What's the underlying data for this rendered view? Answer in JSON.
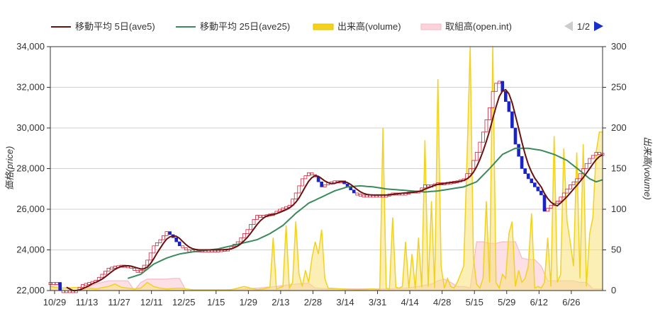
{
  "chart_data": {
    "type": "candlestick+line+area",
    "legend": [
      {
        "name": "移動平均 5日(ave5)",
        "color": "#6b0f0f",
        "kind": "line"
      },
      {
        "name": "移動平均 25日(ave25)",
        "color": "#3a8a5c",
        "kind": "line"
      },
      {
        "name": "出来高(volume)",
        "color": "#f2d21c",
        "kind": "area"
      },
      {
        "name": "取組高(open.int)",
        "color": "#f7b9c6",
        "kind": "area"
      }
    ],
    "pager": {
      "label": "1/2"
    },
    "y_left": {
      "label": "価格(price)",
      "min": 22000,
      "max": 34000,
      "ticks": [
        22000,
        24000,
        26000,
        28000,
        30000,
        32000,
        34000
      ],
      "tick_labels": [
        "22,000",
        "24,000",
        "26,000",
        "28,000",
        "30,000",
        "32,000",
        "34,000"
      ]
    },
    "y_right": {
      "label": "出来高(volume)",
      "min": 0,
      "max": 300,
      "ticks": [
        0,
        50,
        100,
        150,
        200,
        250,
        300
      ],
      "tick_labels": [
        "0",
        "50",
        "100",
        "150",
        "200",
        "250",
        "300"
      ]
    },
    "x_tick_labels": [
      "10/29",
      "11/13",
      "11/27",
      "12/11",
      "12/25",
      "1/15",
      "1/29",
      "2/13",
      "2/28",
      "3/14",
      "3/31",
      "4/14",
      "4/28",
      "5/15",
      "5/29",
      "6/12",
      "6/26"
    ],
    "x_tick_index": [
      0,
      10,
      20,
      30,
      40,
      50,
      60,
      70,
      80,
      90,
      100,
      110,
      120,
      130,
      140,
      150,
      160
    ],
    "n_points": 172,
    "price_anchors": [
      [
        0,
        22400
      ],
      [
        2,
        22400
      ],
      [
        3,
        22000
      ],
      [
        4,
        22000
      ],
      [
        8,
        22000
      ],
      [
        10,
        22300
      ],
      [
        12,
        22400
      ],
      [
        14,
        22500
      ],
      [
        16,
        22800
      ],
      [
        18,
        23100
      ],
      [
        20,
        23200
      ],
      [
        22,
        23250
      ],
      [
        24,
        23200
      ],
      [
        26,
        23000
      ],
      [
        28,
        23000
      ],
      [
        30,
        23500
      ],
      [
        32,
        24200
      ],
      [
        34,
        24500
      ],
      [
        36,
        24900
      ],
      [
        38,
        24600
      ],
      [
        40,
        24200
      ],
      [
        42,
        24000
      ],
      [
        44,
        24000
      ],
      [
        48,
        24000
      ],
      [
        52,
        24000
      ],
      [
        55,
        24050
      ],
      [
        58,
        24400
      ],
      [
        61,
        25000
      ],
      [
        63,
        25500
      ],
      [
        64,
        25700
      ],
      [
        66,
        25700
      ],
      [
        69,
        25800
      ],
      [
        71,
        26000
      ],
      [
        74,
        26200
      ],
      [
        76,
        26800
      ],
      [
        78,
        27500
      ],
      [
        80,
        27800
      ],
      [
        82,
        27600
      ],
      [
        84,
        27100
      ],
      [
        86,
        27300
      ],
      [
        88,
        27400
      ],
      [
        90,
        27400
      ],
      [
        92,
        27100
      ],
      [
        94,
        26800
      ],
      [
        96,
        26700
      ],
      [
        100,
        26700
      ],
      [
        104,
        26700
      ],
      [
        106,
        26800
      ],
      [
        110,
        26800
      ],
      [
        112,
        26900
      ],
      [
        114,
        26900
      ],
      [
        116,
        27200
      ],
      [
        118,
        27200
      ],
      [
        120,
        27300
      ],
      [
        122,
        27300
      ],
      [
        124,
        27350
      ],
      [
        126,
        27400
      ],
      [
        128,
        27500
      ],
      [
        130,
        28000
      ],
      [
        132,
        28800
      ],
      [
        134,
        29800
      ],
      [
        136,
        31000
      ],
      [
        137,
        31800
      ],
      [
        138,
        32200
      ],
      [
        139,
        32300
      ],
      [
        140,
        31800
      ],
      [
        142,
        30800
      ],
      [
        144,
        29200
      ],
      [
        146,
        28000
      ],
      [
        148,
        27500
      ],
      [
        150,
        27100
      ],
      [
        152,
        26700
      ],
      [
        153,
        25900
      ],
      [
        155,
        26200
      ],
      [
        157,
        26400
      ],
      [
        159,
        26800
      ],
      [
        161,
        27200
      ],
      [
        163,
        27500
      ],
      [
        165,
        28000
      ],
      [
        167,
        28500
      ],
      [
        169,
        28800
      ],
      [
        171,
        28700
      ]
    ],
    "ave25_anchors": [
      [
        24,
        22600
      ],
      [
        28,
        22800
      ],
      [
        32,
        23300
      ],
      [
        36,
        23600
      ],
      [
        40,
        23800
      ],
      [
        44,
        23900
      ],
      [
        48,
        23980
      ],
      [
        52,
        24050
      ],
      [
        56,
        24200
      ],
      [
        60,
        24350
      ],
      [
        64,
        24500
      ],
      [
        68,
        24800
      ],
      [
        72,
        25200
      ],
      [
        76,
        25800
      ],
      [
        80,
        26300
      ],
      [
        84,
        26600
      ],
      [
        88,
        26900
      ],
      [
        92,
        27100
      ],
      [
        96,
        27150
      ],
      [
        100,
        27100
      ],
      [
        104,
        27000
      ],
      [
        108,
        26950
      ],
      [
        112,
        26900
      ],
      [
        116,
        26850
      ],
      [
        120,
        26900
      ],
      [
        124,
        27000
      ],
      [
        128,
        27100
      ],
      [
        132,
        27350
      ],
      [
        136,
        28000
      ],
      [
        140,
        28700
      ],
      [
        144,
        29000
      ],
      [
        148,
        29000
      ],
      [
        152,
        28900
      ],
      [
        156,
        28700
      ],
      [
        160,
        28400
      ],
      [
        164,
        27900
      ],
      [
        167,
        27500
      ],
      [
        169,
        27350
      ],
      [
        171,
        27450
      ]
    ],
    "volume_anchors": [
      [
        0,
        5
      ],
      [
        3,
        3
      ],
      [
        10,
        4
      ],
      [
        12,
        3
      ],
      [
        14,
        2
      ],
      [
        18,
        5
      ],
      [
        20,
        8
      ],
      [
        22,
        4
      ],
      [
        26,
        2
      ],
      [
        28,
        3
      ],
      [
        30,
        10
      ],
      [
        32,
        5
      ],
      [
        34,
        3
      ],
      [
        36,
        2
      ],
      [
        40,
        3
      ],
      [
        44,
        1
      ],
      [
        50,
        1
      ],
      [
        56,
        1
      ],
      [
        60,
        5
      ],
      [
        62,
        3
      ],
      [
        64,
        1
      ],
      [
        66,
        2
      ],
      [
        68,
        4
      ],
      [
        69,
        65
      ],
      [
        70,
        2
      ],
      [
        72,
        5
      ],
      [
        73,
        80
      ],
      [
        74,
        3
      ],
      [
        75,
        10
      ],
      [
        76,
        85
      ],
      [
        77,
        20
      ],
      [
        78,
        5
      ],
      [
        79,
        25
      ],
      [
        80,
        10
      ],
      [
        81,
        40
      ],
      [
        82,
        60
      ],
      [
        83,
        45
      ],
      [
        84,
        75
      ],
      [
        85,
        15
      ],
      [
        86,
        3
      ],
      [
        90,
        2
      ],
      [
        95,
        1
      ],
      [
        100,
        2
      ],
      [
        102,
        1
      ],
      [
        103,
        200
      ],
      [
        104,
        3
      ],
      [
        105,
        2
      ],
      [
        106,
        90
      ],
      [
        107,
        4
      ],
      [
        108,
        3
      ],
      [
        109,
        5
      ],
      [
        110,
        60
      ],
      [
        111,
        3
      ],
      [
        112,
        45
      ],
      [
        113,
        2
      ],
      [
        114,
        65
      ],
      [
        115,
        4
      ],
      [
        116,
        185
      ],
      [
        117,
        5
      ],
      [
        118,
        110
      ],
      [
        119,
        3
      ],
      [
        120,
        260
      ],
      [
        121,
        30
      ],
      [
        122,
        3
      ],
      [
        123,
        15
      ],
      [
        124,
        5
      ],
      [
        125,
        3
      ],
      [
        126,
        10
      ],
      [
        128,
        30
      ],
      [
        129,
        160
      ],
      [
        130,
        345
      ],
      [
        131,
        40
      ],
      [
        132,
        8
      ],
      [
        133,
        3
      ],
      [
        134,
        15
      ],
      [
        135,
        110
      ],
      [
        136,
        10
      ],
      [
        137,
        340
      ],
      [
        138,
        10
      ],
      [
        139,
        3
      ],
      [
        140,
        20
      ],
      [
        141,
        15
      ],
      [
        142,
        70
      ],
      [
        143,
        85
      ],
      [
        144,
        5
      ],
      [
        145,
        25
      ],
      [
        146,
        10
      ],
      [
        147,
        15
      ],
      [
        148,
        30
      ],
      [
        149,
        95
      ],
      [
        150,
        3
      ],
      [
        151,
        5
      ],
      [
        152,
        3
      ],
      [
        153,
        10
      ],
      [
        154,
        65
      ],
      [
        155,
        5
      ],
      [
        156,
        190
      ],
      [
        157,
        10
      ],
      [
        158,
        20
      ],
      [
        159,
        175
      ],
      [
        160,
        85
      ],
      [
        161,
        60
      ],
      [
        162,
        30
      ],
      [
        163,
        170
      ],
      [
        164,
        15
      ],
      [
        165,
        180
      ],
      [
        166,
        5
      ],
      [
        167,
        70
      ],
      [
        168,
        90
      ],
      [
        169,
        170
      ],
      [
        170,
        195
      ],
      [
        171,
        195
      ]
    ],
    "openint_anchors": [
      [
        0,
        10
      ],
      [
        2,
        8
      ],
      [
        4,
        0
      ],
      [
        10,
        0
      ],
      [
        12,
        5
      ],
      [
        14,
        8
      ],
      [
        18,
        12
      ],
      [
        20,
        12
      ],
      [
        24,
        12
      ],
      [
        26,
        0
      ],
      [
        28,
        10
      ],
      [
        30,
        14
      ],
      [
        32,
        14
      ],
      [
        34,
        14
      ],
      [
        36,
        14
      ],
      [
        38,
        15
      ],
      [
        40,
        15
      ],
      [
        42,
        0
      ],
      [
        50,
        0
      ],
      [
        60,
        2
      ],
      [
        64,
        3
      ],
      [
        70,
        5
      ],
      [
        76,
        8
      ],
      [
        80,
        9
      ],
      [
        82,
        3
      ],
      [
        86,
        2
      ],
      [
        90,
        2
      ],
      [
        95,
        2
      ],
      [
        100,
        2
      ],
      [
        105,
        2
      ],
      [
        110,
        3
      ],
      [
        114,
        5
      ],
      [
        118,
        8
      ],
      [
        120,
        12
      ],
      [
        122,
        14
      ],
      [
        124,
        10
      ],
      [
        126,
        5
      ],
      [
        128,
        5
      ],
      [
        130,
        3
      ],
      [
        132,
        60
      ],
      [
        134,
        60
      ],
      [
        136,
        58
      ],
      [
        138,
        58
      ],
      [
        140,
        60
      ],
      [
        142,
        60
      ],
      [
        144,
        60
      ],
      [
        146,
        40
      ],
      [
        148,
        38
      ],
      [
        150,
        38
      ],
      [
        152,
        30
      ],
      [
        154,
        12
      ],
      [
        156,
        12
      ],
      [
        158,
        12
      ],
      [
        160,
        12
      ],
      [
        162,
        12
      ],
      [
        164,
        10
      ],
      [
        166,
        10
      ],
      [
        168,
        2
      ],
      [
        170,
        2
      ],
      [
        171,
        2
      ]
    ],
    "ave5_start_index": 5,
    "ave25_start_index": 24
  }
}
